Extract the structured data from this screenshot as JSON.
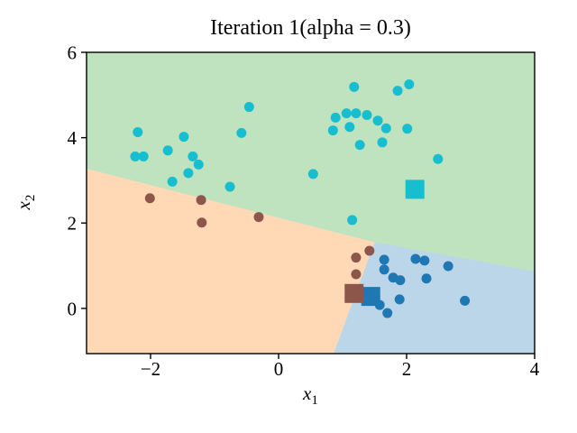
{
  "chart_data": {
    "type": "scatter",
    "title": "Iteration 1(alpha = 0.3)",
    "xlabel": "x_1",
    "ylabel": "x_2",
    "xlabel_parts": {
      "base": "x",
      "sub": "1"
    },
    "ylabel_parts": {
      "base": "x",
      "sub": "2"
    },
    "xlim": [
      -3,
      4
    ],
    "ylim": [
      -1.06,
      6
    ],
    "grid": false,
    "legend": null,
    "xticks": {
      "values": [
        -2,
        0,
        2,
        4
      ],
      "labels": [
        "−2",
        "0",
        "2",
        "4"
      ]
    },
    "yticks": {
      "values": [
        0,
        2,
        4,
        6
      ],
      "labels": [
        "0",
        "2",
        "4",
        "6"
      ]
    },
    "regions": [
      {
        "name": "green-region",
        "color": "#2ca02c",
        "opacity": 0.3,
        "polygon": [
          [
            -3,
            6
          ],
          [
            4,
            6
          ],
          [
            4,
            0.87
          ],
          [
            1.5,
            1.55
          ],
          [
            -3,
            3.27
          ]
        ]
      },
      {
        "name": "orange-region",
        "color": "#ff7f0e",
        "opacity": 0.3,
        "polygon": [
          [
            -3,
            3.27
          ],
          [
            1.5,
            1.55
          ],
          [
            0.86,
            -1.06
          ],
          [
            -3,
            -1.06
          ]
        ]
      },
      {
        "name": "blue-region",
        "color": "#1f77b4",
        "opacity": 0.3,
        "polygon": [
          [
            1.5,
            1.55
          ],
          [
            4,
            0.87
          ],
          [
            4,
            -1.06
          ],
          [
            0.86,
            -1.06
          ]
        ]
      }
    ],
    "series": [
      {
        "name": "cluster-cyan",
        "marker": "circle",
        "color": "#17becf",
        "points": [
          [
            -2.2,
            4.13
          ],
          [
            -1.48,
            4.02
          ],
          [
            -0.58,
            4.11
          ],
          [
            -0.46,
            4.72
          ],
          [
            -1.73,
            3.7
          ],
          [
            -2.24,
            3.56
          ],
          [
            -2.11,
            3.56
          ],
          [
            -1.34,
            3.56
          ],
          [
            -1.25,
            3.37
          ],
          [
            -1.41,
            3.17
          ],
          [
            -1.66,
            2.97
          ],
          [
            -0.76,
            2.85
          ],
          [
            0.54,
            3.15
          ],
          [
            1.18,
            5.19
          ],
          [
            1.86,
            5.1
          ],
          [
            2.04,
            5.25
          ],
          [
            0.89,
            4.47
          ],
          [
            1.06,
            4.57
          ],
          [
            1.21,
            4.57
          ],
          [
            1.38,
            4.53
          ],
          [
            1.55,
            4.4
          ],
          [
            0.85,
            4.17
          ],
          [
            1.11,
            4.25
          ],
          [
            1.68,
            4.22
          ],
          [
            2.01,
            4.21
          ],
          [
            1.27,
            3.83
          ],
          [
            1.62,
            3.89
          ],
          [
            2.49,
            3.5
          ],
          [
            1.15,
            2.07
          ]
        ]
      },
      {
        "name": "cluster-brown",
        "marker": "circle",
        "color": "#8c564b",
        "points": [
          [
            -2.01,
            2.58
          ],
          [
            -1.21,
            2.54
          ],
          [
            -1.2,
            2.01
          ],
          [
            -0.31,
            2.14
          ],
          [
            1.42,
            1.35
          ],
          [
            1.21,
            1.19
          ],
          [
            1.21,
            0.8
          ]
        ]
      },
      {
        "name": "cluster-blue",
        "marker": "circle",
        "color": "#1f77b4",
        "points": [
          [
            1.65,
            1.14
          ],
          [
            1.65,
            0.91
          ],
          [
            2.14,
            1.16
          ],
          [
            2.28,
            1.12
          ],
          [
            2.65,
            0.99
          ],
          [
            1.79,
            0.72
          ],
          [
            1.9,
            0.66
          ],
          [
            2.31,
            0.7
          ],
          [
            1.89,
            0.21
          ],
          [
            2.91,
            0.18
          ],
          [
            1.58,
            0.08
          ],
          [
            1.7,
            -0.11
          ]
        ]
      },
      {
        "name": "centroid-blue",
        "marker": "square",
        "color": "#1f77b4",
        "points": [
          [
            1.44,
            0.28
          ]
        ]
      },
      {
        "name": "centroid-brown",
        "marker": "square",
        "color": "#8c564b",
        "points": [
          [
            1.18,
            0.35
          ]
        ]
      },
      {
        "name": "centroid-cyan",
        "marker": "square",
        "color": "#17becf",
        "points": [
          [
            2.13,
            2.79
          ]
        ]
      }
    ]
  }
}
